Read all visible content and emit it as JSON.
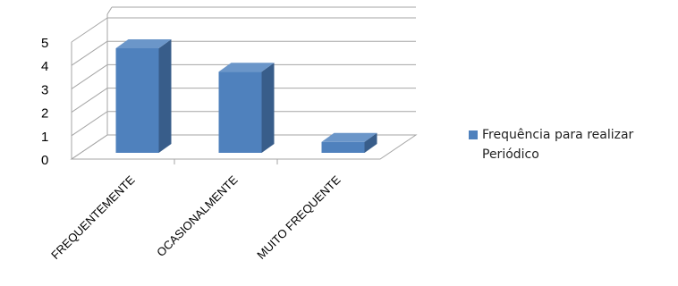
{
  "chart_data": {
    "type": "bar",
    "categories": [
      "FREQUENTEMENTE",
      "OCASIONALMENTE",
      "MUITO FREQUENTE"
    ],
    "series": [
      {
        "name": "Frequência para realizar\nPeriódico",
        "values": [
          5,
          4,
          1
        ]
      }
    ],
    "ylim": [
      0,
      5
    ],
    "yticks": [
      0,
      1,
      2,
      3,
      4,
      5
    ],
    "grid": true,
    "legend_position": "right",
    "colors": {
      "bar_front": "#4f81bd",
      "bar_side": "#385d8a",
      "bar_top": "#6b96c9",
      "grid": "#a6a6a6"
    }
  }
}
